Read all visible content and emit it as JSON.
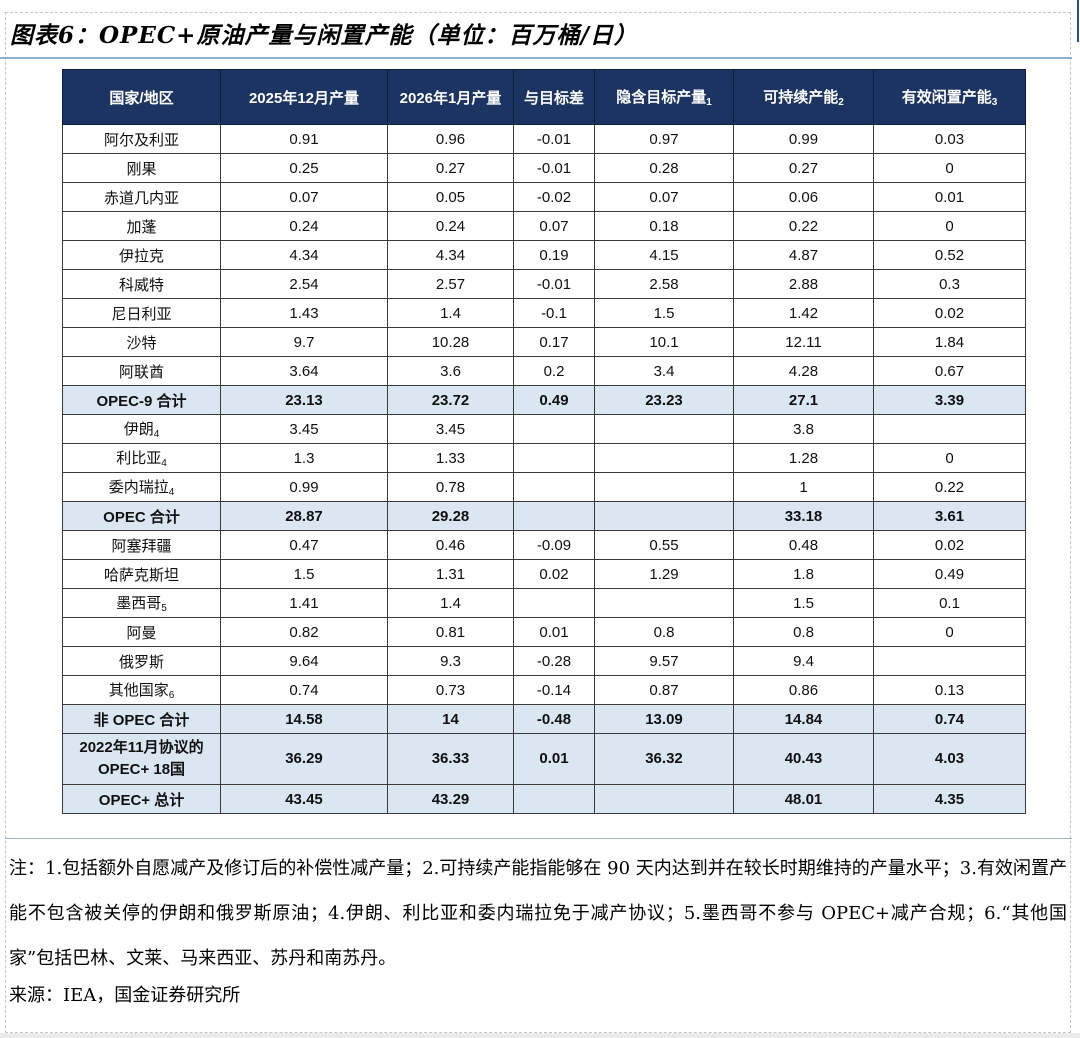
{
  "title": "图表6：OPEC+原油产量与闲置产能（单位：百万桶/日）",
  "table": {
    "headers": [
      {
        "label": "国家/地区",
        "sub": ""
      },
      {
        "label": "2025年12月产量",
        "sub": ""
      },
      {
        "label": "2026年1月产量",
        "sub": ""
      },
      {
        "label": "与目标差",
        "sub": ""
      },
      {
        "label": "隐含目标产量",
        "sub": "1"
      },
      {
        "label": "可持续产能",
        "sub": "2"
      },
      {
        "label": "有效闲置产能",
        "sub": "3"
      }
    ],
    "rows": [
      {
        "name": "阿尔及利亚",
        "sub": "",
        "name2": "",
        "type": "normal",
        "values": [
          "0.91",
          "0.96",
          "-0.01",
          "0.97",
          "0.99",
          "0.03"
        ]
      },
      {
        "name": "刚果",
        "sub": "",
        "name2": "",
        "type": "normal",
        "values": [
          "0.25",
          "0.27",
          "-0.01",
          "0.28",
          "0.27",
          "0"
        ]
      },
      {
        "name": "赤道几内亚",
        "sub": "",
        "name2": "",
        "type": "normal",
        "values": [
          "0.07",
          "0.05",
          "-0.02",
          "0.07",
          "0.06",
          "0.01"
        ]
      },
      {
        "name": "加蓬",
        "sub": "",
        "name2": "",
        "type": "normal",
        "values": [
          "0.24",
          "0.24",
          "0.07",
          "0.18",
          "0.22",
          "0"
        ]
      },
      {
        "name": "伊拉克",
        "sub": "",
        "name2": "",
        "type": "normal",
        "values": [
          "4.34",
          "4.34",
          "0.19",
          "4.15",
          "4.87",
          "0.52"
        ]
      },
      {
        "name": "科威特",
        "sub": "",
        "name2": "",
        "type": "normal",
        "values": [
          "2.54",
          "2.57",
          "-0.01",
          "2.58",
          "2.88",
          "0.3"
        ]
      },
      {
        "name": "尼日利亚",
        "sub": "",
        "name2": "",
        "type": "normal",
        "values": [
          "1.43",
          "1.4",
          "-0.1",
          "1.5",
          "1.42",
          "0.02"
        ]
      },
      {
        "name": "沙特",
        "sub": "",
        "name2": "",
        "type": "normal",
        "values": [
          "9.7",
          "10.28",
          "0.17",
          "10.1",
          "12.11",
          "1.84"
        ]
      },
      {
        "name": "阿联酋",
        "sub": "",
        "name2": "",
        "type": "normal",
        "values": [
          "3.64",
          "3.6",
          "0.2",
          "3.4",
          "4.28",
          "0.67"
        ]
      },
      {
        "name": "OPEC-9 合计",
        "sub": "",
        "name2": "",
        "type": "subtotal",
        "values": [
          "23.13",
          "23.72",
          "0.49",
          "23.23",
          "27.1",
          "3.39"
        ]
      },
      {
        "name": "伊朗",
        "sub": "4",
        "name2": "",
        "type": "normal",
        "values": [
          "3.45",
          "3.45",
          "",
          "",
          "3.8",
          ""
        ]
      },
      {
        "name": "利比亚",
        "sub": "4",
        "name2": "",
        "type": "normal",
        "values": [
          "1.3",
          "1.33",
          "",
          "",
          "1.28",
          "0"
        ]
      },
      {
        "name": "委内瑞拉",
        "sub": "4",
        "name2": "",
        "type": "normal",
        "values": [
          "0.99",
          "0.78",
          "",
          "",
          "1",
          "0.22"
        ]
      },
      {
        "name": "OPEC 合计",
        "sub": "",
        "name2": "",
        "type": "subtotal",
        "values": [
          "28.87",
          "29.28",
          "",
          "",
          "33.18",
          "3.61"
        ]
      },
      {
        "name": "阿塞拜疆",
        "sub": "",
        "name2": "",
        "type": "normal",
        "values": [
          "0.47",
          "0.46",
          "-0.09",
          "0.55",
          "0.48",
          "0.02"
        ]
      },
      {
        "name": "哈萨克斯坦",
        "sub": "",
        "name2": "",
        "type": "normal",
        "values": [
          "1.5",
          "1.31",
          "0.02",
          "1.29",
          "1.8",
          "0.49"
        ]
      },
      {
        "name": "墨西哥",
        "sub": "5",
        "name2": "",
        "type": "normal",
        "values": [
          "1.41",
          "1.4",
          "",
          "",
          "1.5",
          "0.1"
        ]
      },
      {
        "name": "阿曼",
        "sub": "",
        "name2": "",
        "type": "normal",
        "values": [
          "0.82",
          "0.81",
          "0.01",
          "0.8",
          "0.8",
          "0"
        ]
      },
      {
        "name": "俄罗斯",
        "sub": "",
        "name2": "",
        "type": "normal",
        "values": [
          "9.64",
          "9.3",
          "-0.28",
          "9.57",
          "9.4",
          ""
        ]
      },
      {
        "name": "其他国家",
        "sub": "6",
        "name2": "",
        "type": "normal",
        "values": [
          "0.74",
          "0.73",
          "-0.14",
          "0.87",
          "0.86",
          "0.13"
        ]
      },
      {
        "name": "非 OPEC 合计",
        "sub": "",
        "name2": "",
        "type": "subtotal",
        "values": [
          "14.58",
          "14",
          "-0.48",
          "13.09",
          "14.84",
          "0.74"
        ]
      },
      {
        "name": "2022年11月协议的",
        "sub": "",
        "name2": "OPEC+ 18国",
        "type": "subtotal tall",
        "values": [
          "36.29",
          "36.33",
          "0.01",
          "36.32",
          "40.43",
          "4.03"
        ]
      },
      {
        "name": "OPEC+ 总计",
        "sub": "",
        "name2": "",
        "type": "subtotal",
        "values": [
          "43.45",
          "43.29",
          "",
          "",
          "48.01",
          "4.35"
        ]
      }
    ]
  },
  "notes": "注：1.包括额外自愿减产及修订后的补偿性减产量；2.可持续产能指能够在 90 天内达到并在较长时期维持的产量水平；3.有效闲置产能不包含被关停的伊朗和俄罗斯原油；4.伊朗、利比亚和委内瑞拉免于减产协议；5.墨西哥不参与 OPEC+减产合规；6.“其他国家”包括巴林、文莱、马来西亚、苏丹和南苏丹。",
  "source": "来源：IEA，国金证券研究所",
  "colors": {
    "header_bg": "#1b3461",
    "subtotal_bg": "#dae7f3",
    "rule_blue": "#8fb0cb",
    "border": "#3a3a3a"
  }
}
